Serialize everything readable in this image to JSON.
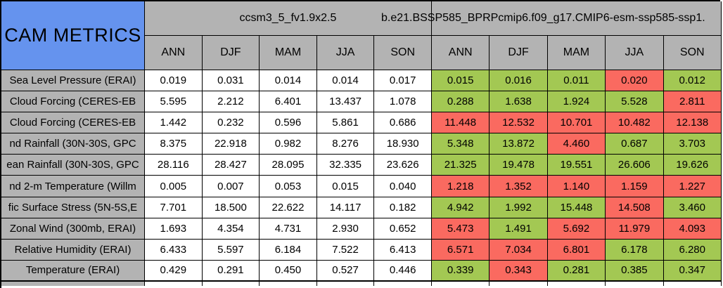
{
  "table": {
    "corner_label": "CAM METRICS",
    "groups": [
      {
        "name": "ccsm3_5_fv1.9x2.5",
        "seasons": [
          "ANN",
          "DJF",
          "MAM",
          "JJA",
          "SON"
        ]
      },
      {
        "name": "b.e21.BSSP585_BPRPcmip6.f09_g17.CMIP6-esm-ssp585-ssp1.",
        "seasons": [
          "ANN",
          "DJF",
          "MAM",
          "JJA",
          "SON"
        ]
      }
    ],
    "rows": [
      {
        "label": "Sea Level Pressure (ERAI)",
        "baseline": [
          "0.019",
          "0.031",
          "0.014",
          "0.014",
          "0.017"
        ],
        "test": [
          "0.015",
          "0.016",
          "0.011",
          "0.020",
          "0.012"
        ],
        "test_status": [
          "green",
          "green",
          "green",
          "red",
          "green"
        ]
      },
      {
        "label": "Cloud Forcing (CERES-EB",
        "baseline": [
          "5.595",
          "2.212",
          "6.401",
          "13.437",
          "1.078"
        ],
        "test": [
          "0.288",
          "1.638",
          "1.924",
          "5.528",
          "2.811"
        ],
        "test_status": [
          "green",
          "green",
          "green",
          "green",
          "red"
        ]
      },
      {
        "label": "Cloud Forcing (CERES-EB",
        "baseline": [
          "1.442",
          "0.232",
          "0.596",
          "5.861",
          "0.686"
        ],
        "test": [
          "11.448",
          "12.532",
          "10.701",
          "10.482",
          "12.138"
        ],
        "test_status": [
          "red",
          "red",
          "red",
          "red",
          "red"
        ]
      },
      {
        "label": "nd Rainfall (30N-30S, GPC",
        "baseline": [
          "8.375",
          "22.918",
          "0.982",
          "8.276",
          "18.930"
        ],
        "test": [
          "5.348",
          "13.872",
          "4.460",
          "0.687",
          "3.703"
        ],
        "test_status": [
          "green",
          "green",
          "red",
          "green",
          "green"
        ]
      },
      {
        "label": "ean Rainfall (30N-30S, GPC",
        "baseline": [
          "28.116",
          "28.427",
          "28.095",
          "32.335",
          "23.626"
        ],
        "test": [
          "21.325",
          "19.478",
          "19.551",
          "26.606",
          "19.626"
        ],
        "test_status": [
          "green",
          "green",
          "green",
          "green",
          "green"
        ]
      },
      {
        "label": "nd 2-m Temperature (Willm",
        "baseline": [
          "0.005",
          "0.007",
          "0.053",
          "0.015",
          "0.040"
        ],
        "test": [
          "1.218",
          "1.352",
          "1.140",
          "1.159",
          "1.227"
        ],
        "test_status": [
          "red",
          "red",
          "red",
          "red",
          "red"
        ]
      },
      {
        "label": "fic Surface Stress (5N-5S,E",
        "baseline": [
          "7.701",
          "18.500",
          "22.622",
          "14.117",
          "0.182"
        ],
        "test": [
          "4.942",
          "1.992",
          "15.448",
          "14.508",
          "3.460"
        ],
        "test_status": [
          "green",
          "green",
          "green",
          "red",
          "green"
        ]
      },
      {
        "label": "Zonal Wind (300mb, ERAI)",
        "baseline": [
          "1.693",
          "4.354",
          "4.731",
          "2.930",
          "0.652"
        ],
        "test": [
          "5.473",
          "1.491",
          "5.692",
          "11.979",
          "4.093"
        ],
        "test_status": [
          "red",
          "green",
          "red",
          "red",
          "red"
        ]
      },
      {
        "label": "Relative Humidity (ERAI)",
        "baseline": [
          "6.433",
          "5.597",
          "6.184",
          "7.522",
          "6.413"
        ],
        "test": [
          "6.571",
          "7.034",
          "6.801",
          "6.178",
          "6.280"
        ],
        "test_status": [
          "red",
          "red",
          "red",
          "green",
          "green"
        ]
      },
      {
        "label": "Temperature (ERAI)",
        "baseline": [
          "0.429",
          "0.291",
          "0.450",
          "0.527",
          "0.446"
        ],
        "test": [
          "0.339",
          "0.343",
          "0.281",
          "0.385",
          "0.347"
        ],
        "test_status": [
          "green",
          "red",
          "green",
          "green",
          "green"
        ]
      }
    ],
    "colors": {
      "header_blue": "#6593EE",
      "header_gray": "#B3B3B3",
      "better_green": "#A3C853",
      "worse_red": "#FA6A60"
    }
  }
}
